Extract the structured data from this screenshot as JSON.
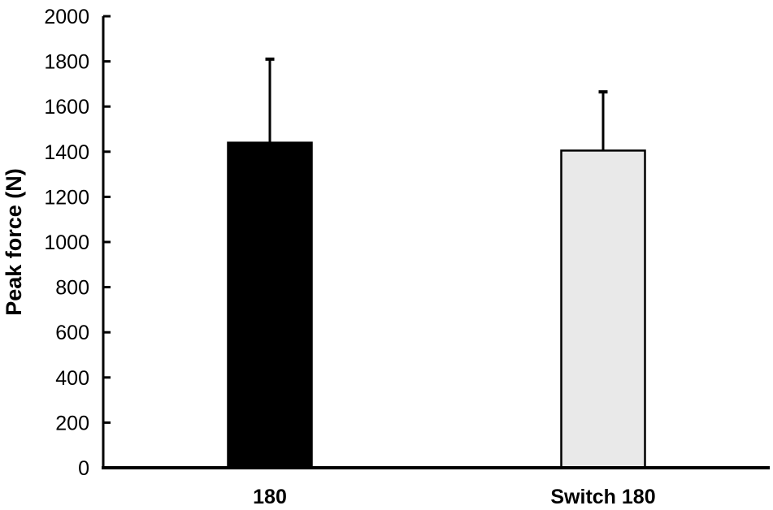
{
  "chart_data": {
    "type": "bar",
    "title": "",
    "xlabel": "",
    "ylabel": "Peak force (N)",
    "categories": [
      "180",
      "Switch 180"
    ],
    "values": [
      1440,
      1405
    ],
    "errors_plus": [
      370,
      260
    ],
    "ylim": [
      0,
      2000
    ],
    "ytick_step": 200,
    "yticks": [
      0,
      200,
      400,
      600,
      800,
      1000,
      1200,
      1400,
      1600,
      1800,
      2000
    ],
    "grid": false,
    "legend_position": "none",
    "bar_fill_colors": [
      "#000000",
      "#e9e9e9"
    ],
    "bar_border_colors": [
      "#000000",
      "#000000"
    ],
    "axis_color": "#000000",
    "background_color": "#ffffff"
  }
}
